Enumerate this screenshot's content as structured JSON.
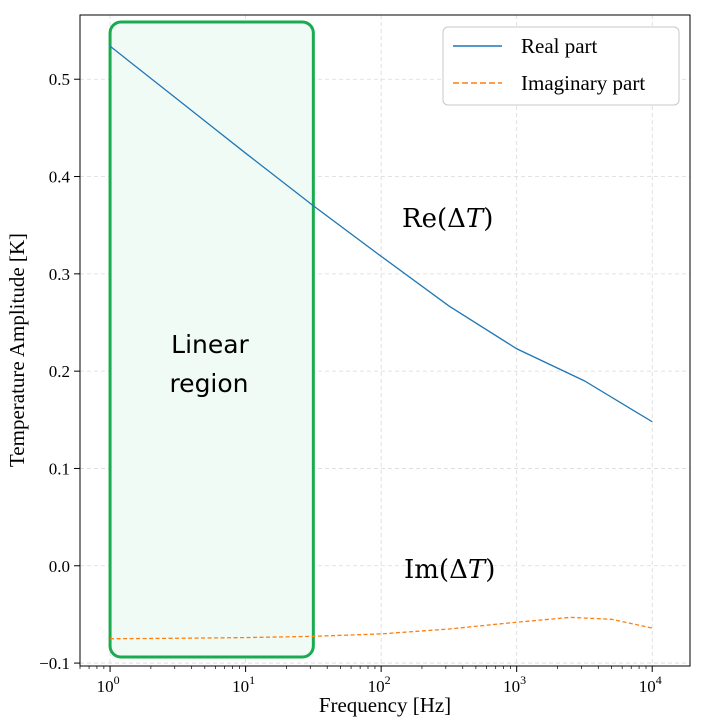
{
  "chart_data": {
    "type": "line",
    "xlabel": "Frequency [Hz]",
    "ylabel": "Temperature Amplitude [K]",
    "x_scale": "log",
    "xlim": [
      0.6,
      19000
    ],
    "ylim": [
      -0.103,
      0.566
    ],
    "grid": true,
    "legend_position": "top-right",
    "x_ticks": [
      {
        "base": "10",
        "exp": "0",
        "value": 1
      },
      {
        "base": "10",
        "exp": "1",
        "value": 10
      },
      {
        "base": "10",
        "exp": "2",
        "value": 100
      },
      {
        "base": "10",
        "exp": "3",
        "value": 1000
      },
      {
        "base": "10",
        "exp": "4",
        "value": 10000
      }
    ],
    "y_ticks": [
      {
        "label": "−0.1",
        "value": -0.1
      },
      {
        "label": "0.0",
        "value": 0.0
      },
      {
        "label": "0.1",
        "value": 0.1
      },
      {
        "label": "0.2",
        "value": 0.2
      },
      {
        "label": "0.3",
        "value": 0.3
      },
      {
        "label": "0.4",
        "value": 0.4
      },
      {
        "label": "0.5",
        "value": 0.5
      }
    ],
    "series": [
      {
        "name": "Real part",
        "color": "#1f77b4",
        "dash": "solid",
        "x": [
          1,
          3.16,
          10,
          31.6,
          100,
          316,
          1000,
          3162,
          10000
        ],
        "y": [
          0.534,
          0.479,
          0.424,
          0.37,
          0.318,
          0.267,
          0.223,
          0.19,
          0.148
        ]
      },
      {
        "name": "Imaginary part",
        "color": "#ff7f0e",
        "dash": "dashed",
        "x": [
          1,
          3.16,
          10,
          31.6,
          100,
          316,
          1000,
          2500,
          5000,
          10000
        ],
        "y": [
          -0.075,
          -0.0745,
          -0.0738,
          -0.0725,
          -0.07,
          -0.065,
          -0.058,
          -0.053,
          -0.055,
          -0.064
        ]
      }
    ],
    "annotations": {
      "re_label": {
        "prefix": "Re(Δ",
        "var": "T",
        "suffix": ")"
      },
      "im_label": {
        "prefix": "Im(Δ",
        "var": "T",
        "suffix": ")"
      },
      "region_label": [
        "Linear",
        "region"
      ]
    },
    "region": {
      "x_range": [
        1,
        31.6
      ],
      "color": "#1aab50",
      "fill": "#f1fbf6"
    }
  }
}
